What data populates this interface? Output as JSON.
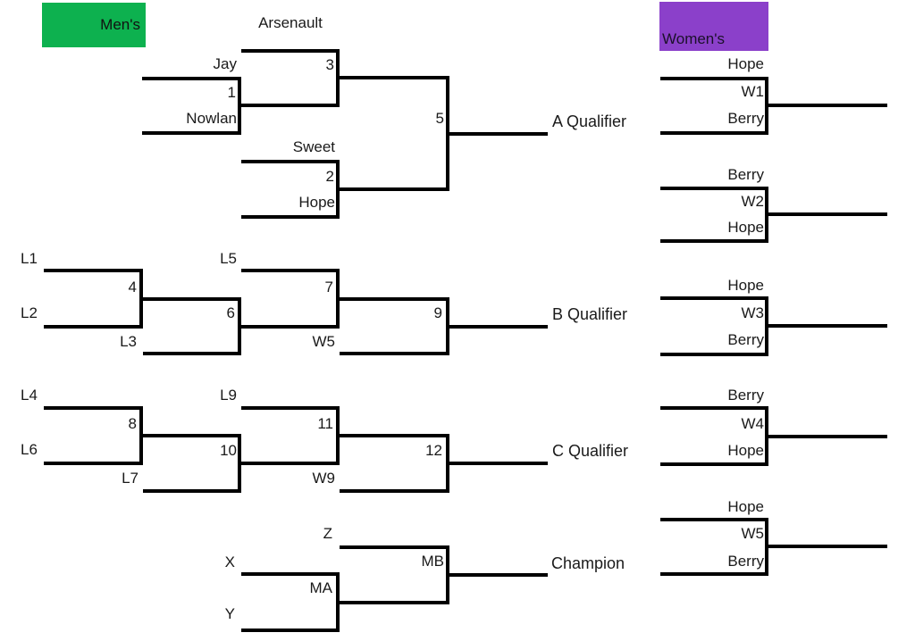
{
  "headers": {
    "mens": "Men's",
    "womens": "Women's"
  },
  "colors": {
    "mens_fill": "#0db14f",
    "womens_fill": "#8b40ca",
    "line": "#000000",
    "text": "#1a1a1a"
  },
  "mens": {
    "m1": {
      "num": "1",
      "top": "Jay",
      "bottom": "Nowlan"
    },
    "m2": {
      "num": "2",
      "top": "Sweet",
      "bottom": "Hope"
    },
    "m3": {
      "num": "3",
      "top": "Arsenault"
    },
    "m4": {
      "num": "4",
      "top": "L1",
      "bottom": "L2"
    },
    "m5": {
      "num": "5"
    },
    "m6": {
      "num": "6",
      "bottom": "L3"
    },
    "m7": {
      "num": "7",
      "top": "L5"
    },
    "m8": {
      "num": "8",
      "top": "L4",
      "bottom": "L6"
    },
    "m9": {
      "num": "9",
      "bottom": "W5"
    },
    "m10": {
      "num": "10",
      "bottom": "L7"
    },
    "m11": {
      "num": "11",
      "top": "L9"
    },
    "m12": {
      "num": "12",
      "bottom": "W9"
    },
    "ma": {
      "num": "MA",
      "top": "X",
      "bottom": "Y"
    },
    "mb": {
      "num": "MB",
      "top": "Z"
    }
  },
  "womens": {
    "w1": {
      "num": "W1",
      "top": "Hope",
      "bottom": "Berry"
    },
    "w2": {
      "num": "W2",
      "top": "Berry",
      "bottom": "Hope"
    },
    "w3": {
      "num": "W3",
      "top": "Hope",
      "bottom": "Berry"
    },
    "w4": {
      "num": "W4",
      "top": "Berry",
      "bottom": "Hope"
    },
    "w5": {
      "num": "W5",
      "top": "Hope",
      "bottom": "Berry"
    }
  },
  "finals": {
    "a": "A Qualifier",
    "b": "B Qualifier",
    "c": "C Qualifier",
    "champion": "Champion"
  }
}
